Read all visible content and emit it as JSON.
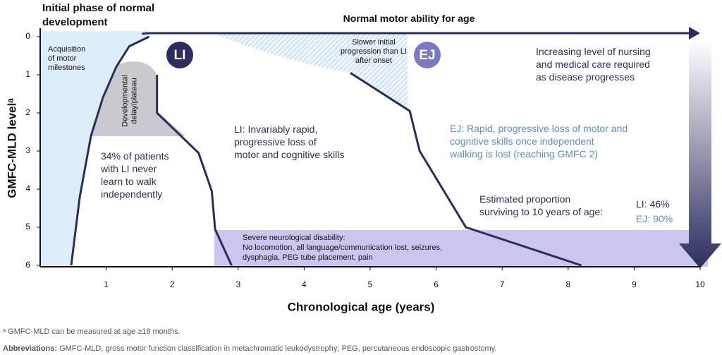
{
  "chart_data": {
    "type": "line",
    "xlabel": "Chronological age (years)",
    "ylabel": "GMFC-MLD levelᵃ",
    "xlim": [
      0,
      10
    ],
    "xticks": [
      1,
      2,
      3,
      4,
      5,
      6,
      7,
      8,
      9,
      10
    ],
    "ylim": [
      0,
      6
    ],
    "yticks": [
      0,
      1,
      2,
      3,
      4,
      5,
      6
    ],
    "y_reversed": true,
    "normal_curve": {
      "color": "#2b2d5e",
      "x": [
        0.47,
        0.6,
        0.77,
        0.95,
        1.15,
        1.35,
        1.65
      ],
      "values": [
        6,
        4.2,
        2.6,
        1.6,
        0.8,
        0.25,
        0
      ]
    },
    "series": [
      {
        "name": "LI",
        "color": "#2b2d5e",
        "badge_color": "#2b2d5e",
        "x": [
          1.77,
          1.77,
          2.4,
          2.6,
          2.65,
          2.9
        ],
        "values": [
          1,
          2,
          3.05,
          4.05,
          5.05,
          6
        ]
      },
      {
        "name": "EJ",
        "color": "#2b2d5e",
        "badge_color": "#7b79c2",
        "x": [
          4.7,
          5.6,
          5.75,
          6.45,
          8.2
        ],
        "values": [
          0.95,
          1.95,
          3.0,
          5.0,
          6
        ]
      }
    ],
    "annotations": [
      {
        "lines": [
          "Initial phase of normal",
          "development"
        ]
      },
      {
        "lines": [
          "Normal motor ability for age"
        ]
      },
      {
        "lines": [
          "Acquisition",
          "of motor",
          "milestones"
        ]
      },
      {
        "lines": [
          "Developmental",
          "delay/plateau"
        ]
      },
      {
        "lines": [
          "Slower initial",
          "progression than LI",
          "after onset"
        ]
      },
      {
        "lines": [
          "Increasing level of nursing",
          "and medical care required",
          "as disease progresses"
        ]
      },
      {
        "lines": [
          "LI: Invariably rapid,",
          "progressive loss of",
          "motor and cognitive skills"
        ]
      },
      {
        "lines": [
          "34% of patients",
          "with LI never",
          "learn to walk",
          "independently"
        ]
      },
      {
        "lines": [
          "EJ: Rapid, progressive loss of motor and",
          "cognitive skills once independent",
          "walking is lost (reaching GMFC 2)"
        ]
      },
      {
        "lines": [
          "Estimated proportion",
          "surviving to 10 years of age:"
        ]
      },
      {
        "lines": [
          "LI: 46%"
        ]
      },
      {
        "lines": [
          "EJ: 90%"
        ]
      },
      {
        "lines": [
          "Severe neurological disability:",
          "No locomotion, all language/communication lost, seizures,",
          "dysphagia, PEG tube placement, pain"
        ]
      }
    ]
  },
  "footer": {
    "footnote": "ᵃ GMFC-MLD can be measured at age ≥18 months.",
    "abbreviations_label": "Abbreviations:",
    "abbreviations": " GMFC-MLD, gross motor function classification in metachromatic leukodystrophy; PEG, percutaneous endoscopic gastrostomy."
  }
}
